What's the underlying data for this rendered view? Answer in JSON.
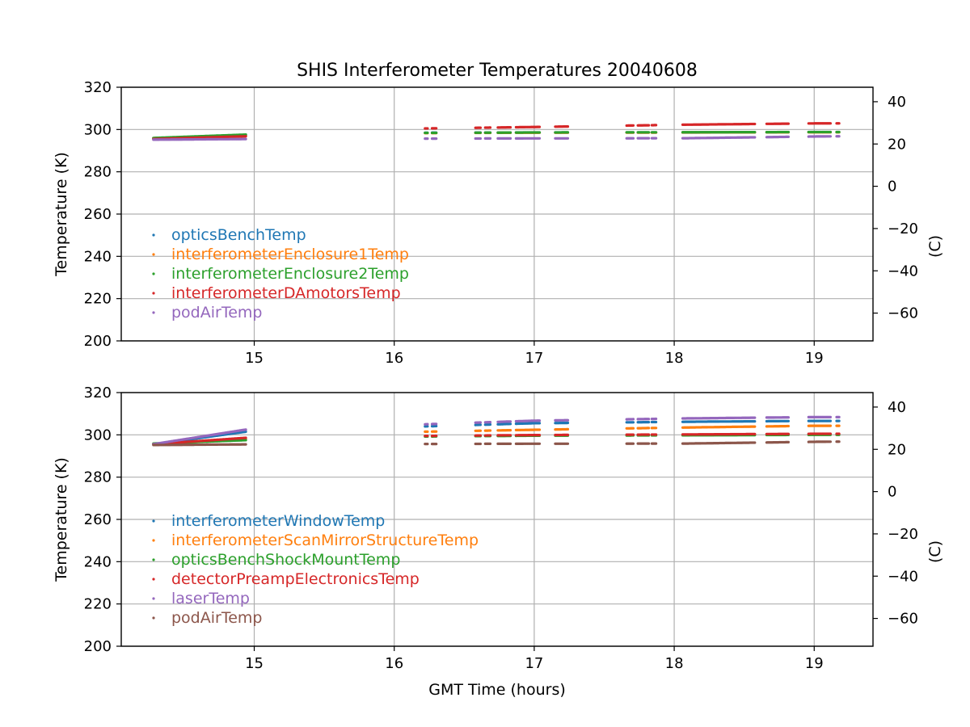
{
  "chart_data": [
    {
      "type": "scatter",
      "title": "SHIS Interferometer Temperatures 20040608",
      "xlabel": "",
      "ylabel": "Temperature (K)",
      "ylabel_right": "(C)",
      "xlim": [
        14.05,
        19.42
      ],
      "ylim": [
        200,
        320
      ],
      "x_ticks": [
        15,
        16,
        17,
        18,
        19
      ],
      "y_ticks": [
        200,
        220,
        240,
        260,
        280,
        300,
        320
      ],
      "y_right_ticks": [
        40,
        20,
        0,
        -20,
        -40,
        -60
      ],
      "grid": true,
      "legend_position": "lower-left",
      "segments": [
        [
          14.28,
          14.94
        ],
        [
          16.22,
          16.24
        ],
        [
          16.27,
          16.3
        ],
        [
          16.58,
          16.62
        ],
        [
          16.65,
          16.69
        ],
        [
          16.74,
          16.83
        ],
        [
          16.87,
          17.04
        ],
        [
          17.15,
          17.24
        ],
        [
          17.66,
          17.71
        ],
        [
          17.74,
          17.82
        ],
        [
          17.84,
          17.87
        ],
        [
          18.06,
          18.58
        ],
        [
          18.66,
          18.82
        ],
        [
          18.96,
          19.12
        ],
        [
          19.16,
          19.18
        ]
      ],
      "series": [
        {
          "name": "opticsBenchTemp",
          "color": "#1f77b4",
          "x": [
            14.28,
            14.94,
            16.22,
            17.0,
            18.1,
            19.0,
            19.18
          ],
          "values": [
            295.9,
            297.3,
            298.5,
            298.6,
            298.6,
            298.8,
            298.8
          ]
        },
        {
          "name": "interferometerEnclosure1Temp",
          "color": "#ff7f0e",
          "x": [
            14.28,
            14.94,
            16.22,
            17.0,
            18.1,
            19.0,
            19.18
          ],
          "values": [
            295.9,
            297.0,
            298.3,
            298.5,
            298.6,
            298.7,
            298.7
          ]
        },
        {
          "name": "interferometerEnclosure2Temp",
          "color": "#2ca02c",
          "x": [
            14.28,
            14.94,
            16.22,
            17.0,
            18.1,
            19.0,
            19.18
          ],
          "values": [
            296.0,
            297.6,
            298.4,
            298.6,
            298.7,
            298.8,
            298.8
          ]
        },
        {
          "name": "interferometerDAmotorsTemp",
          "color": "#d62728",
          "x": [
            14.28,
            14.94,
            16.22,
            17.0,
            18.1,
            19.0,
            19.18
          ],
          "values": [
            295.5,
            296.8,
            300.5,
            301.2,
            302.3,
            302.9,
            302.9
          ]
        },
        {
          "name": "podAirTemp",
          "color": "#9467bd",
          "x": [
            14.28,
            14.94,
            16.22,
            17.0,
            18.1,
            19.0,
            19.18
          ],
          "values": [
            295.2,
            295.5,
            295.7,
            295.8,
            295.9,
            296.7,
            296.8
          ]
        }
      ]
    },
    {
      "type": "scatter",
      "title": "",
      "xlabel": "GMT Time (hours)",
      "ylabel": "Temperature (K)",
      "ylabel_right": "(C)",
      "xlim": [
        14.05,
        19.42
      ],
      "ylim": [
        200,
        320
      ],
      "x_ticks": [
        15,
        16,
        17,
        18,
        19
      ],
      "y_ticks": [
        200,
        220,
        240,
        260,
        280,
        300,
        320
      ],
      "y_right_ticks": [
        40,
        20,
        0,
        -20,
        -40,
        -60
      ],
      "grid": true,
      "legend_position": "lower-left",
      "segments": [
        [
          14.28,
          14.94
        ],
        [
          16.22,
          16.24
        ],
        [
          16.27,
          16.3
        ],
        [
          16.58,
          16.62
        ],
        [
          16.65,
          16.69
        ],
        [
          16.74,
          16.83
        ],
        [
          16.87,
          17.04
        ],
        [
          17.15,
          17.24
        ],
        [
          17.66,
          17.71
        ],
        [
          17.74,
          17.82
        ],
        [
          17.84,
          17.87
        ],
        [
          18.06,
          18.58
        ],
        [
          18.66,
          18.82
        ],
        [
          18.96,
          19.12
        ],
        [
          19.16,
          19.18
        ]
      ],
      "series": [
        {
          "name": "interferometerWindowTemp",
          "color": "#1f77b4",
          "x": [
            14.28,
            14.94,
            16.22,
            17.0,
            18.1,
            19.0,
            19.18
          ],
          "values": [
            295.5,
            301.5,
            304.0,
            305.5,
            306.2,
            306.6,
            306.6
          ]
        },
        {
          "name": "interferometerScanMirrorStructureTemp",
          "color": "#ff7f0e",
          "x": [
            14.28,
            14.94,
            16.22,
            17.0,
            18.1,
            19.0,
            19.18
          ],
          "values": [
            295.6,
            298.0,
            301.5,
            302.4,
            303.5,
            304.3,
            304.3
          ]
        },
        {
          "name": "opticsBenchShockMountTemp",
          "color": "#2ca02c",
          "x": [
            14.28,
            14.94,
            16.22,
            17.0,
            18.1,
            19.0,
            19.18
          ],
          "values": [
            295.9,
            297.5,
            299.2,
            299.6,
            299.8,
            300.0,
            300.0
          ]
        },
        {
          "name": "detectorPreampElectronicsTemp",
          "color": "#d62728",
          "x": [
            14.28,
            14.94,
            16.22,
            17.0,
            18.1,
            19.0,
            19.18
          ],
          "values": [
            295.6,
            298.6,
            299.5,
            299.9,
            300.2,
            300.5,
            300.5
          ]
        },
        {
          "name": "laserTemp",
          "color": "#9467bd",
          "x": [
            14.28,
            14.94,
            16.22,
            17.0,
            18.1,
            19.0,
            19.18
          ],
          "values": [
            295.6,
            302.5,
            305.0,
            306.7,
            307.8,
            308.4,
            308.4
          ]
        },
        {
          "name": "podAirTemp",
          "color": "#8c564b",
          "x": [
            14.28,
            14.94,
            16.22,
            17.0,
            18.1,
            19.0,
            19.18
          ],
          "values": [
            295.2,
            295.5,
            295.7,
            295.8,
            295.9,
            296.7,
            296.8
          ]
        }
      ]
    }
  ]
}
